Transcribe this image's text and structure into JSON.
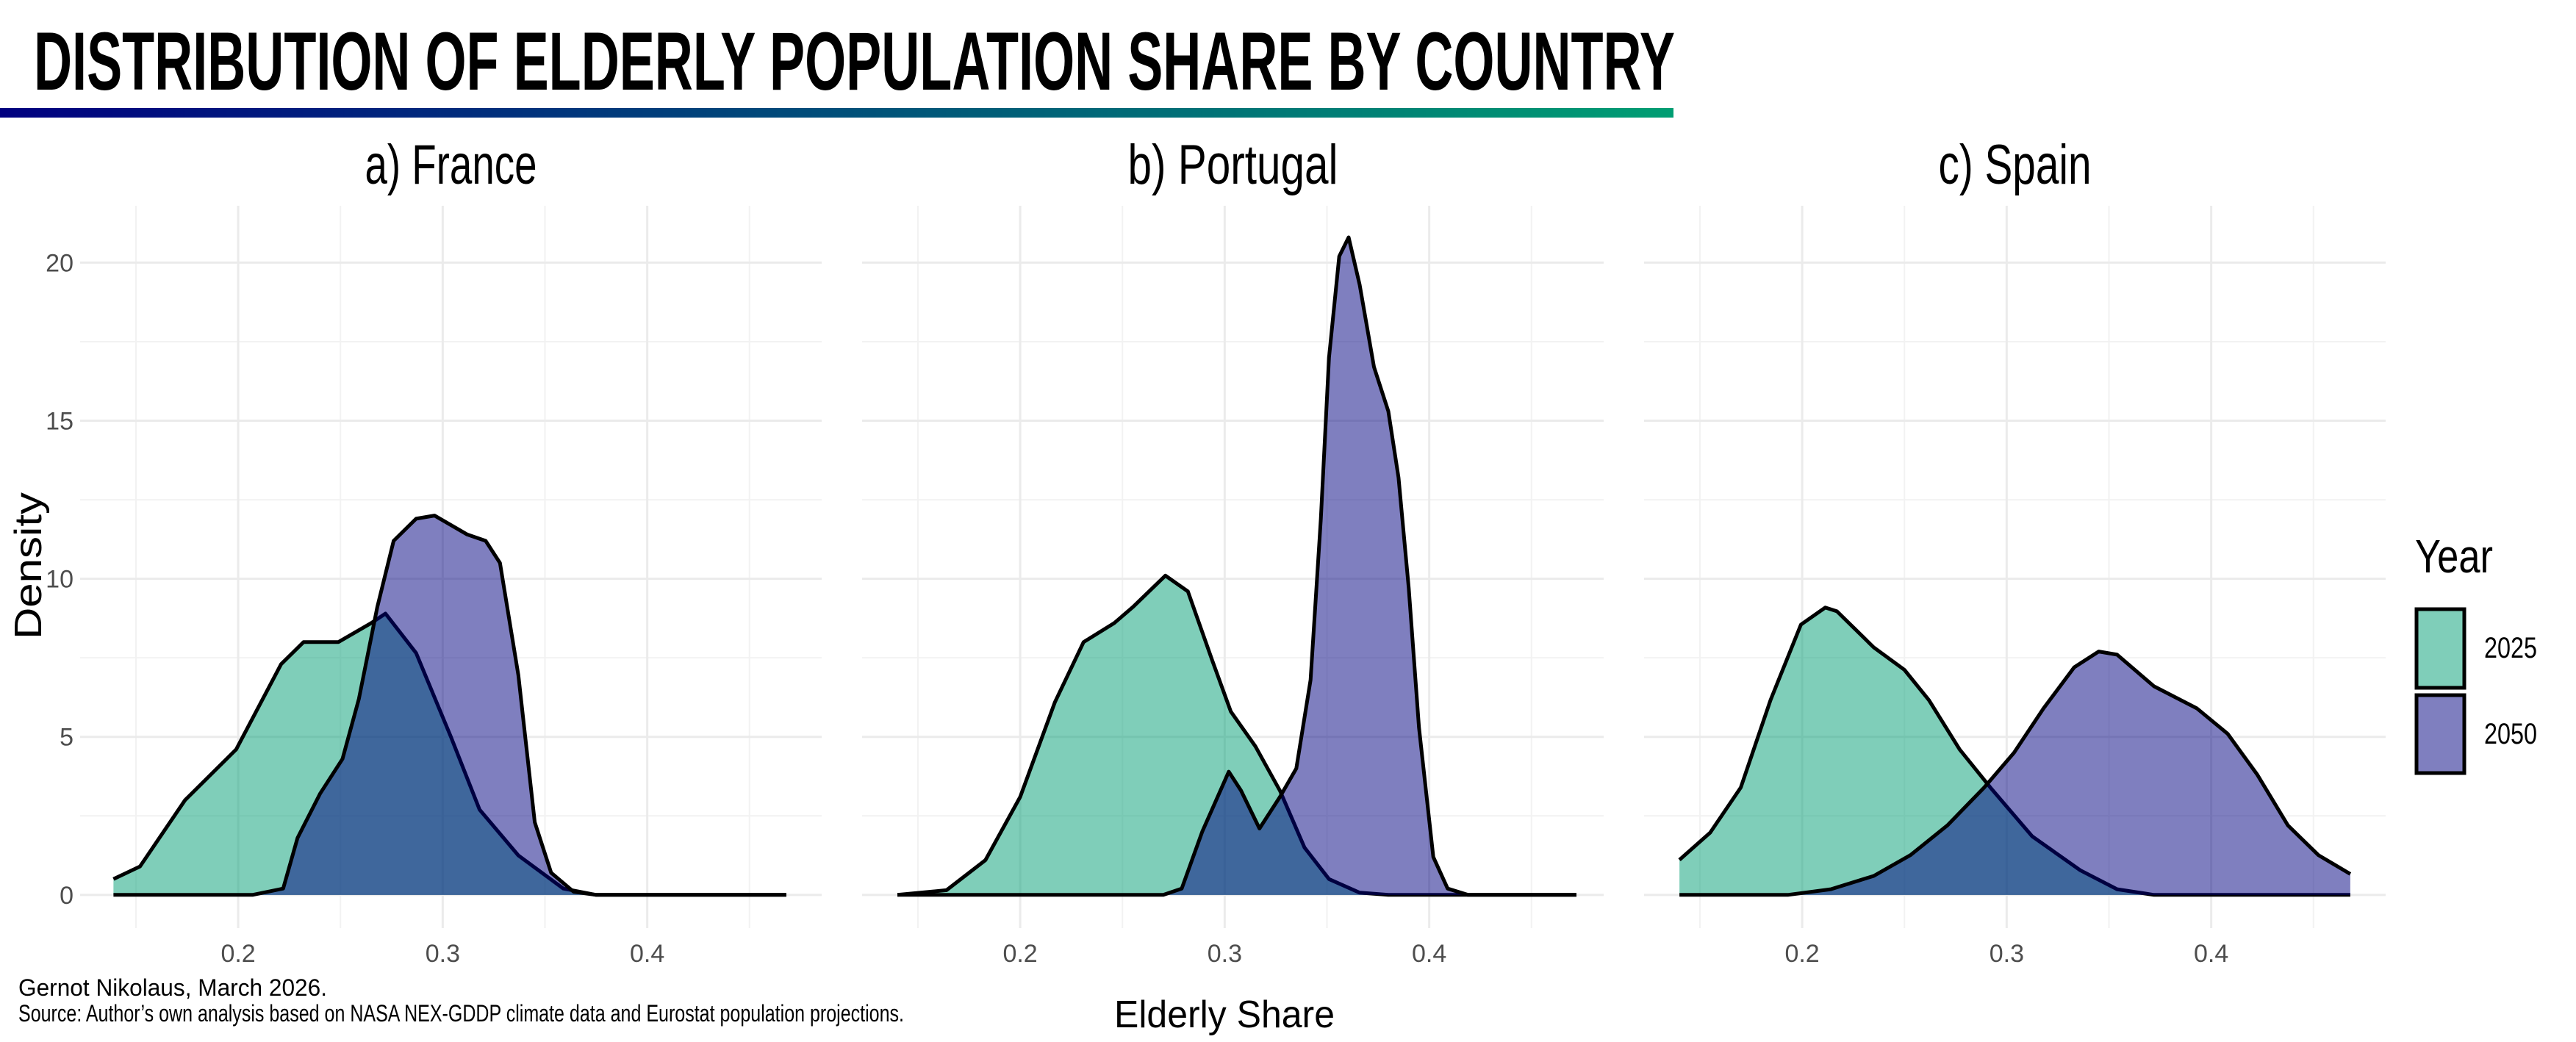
{
  "title": "DISTRIBUTION OF ELDERLY POPULATION SHARE BY COUNTRY",
  "caption_line1": "Gernot Nikolaus, March 2026.",
  "caption_line2": "Source: Author’s own analysis based on NASA NEX-GDDP climate data and Eurostat population projections.",
  "colors": {
    "title_bar_start": "#000080",
    "title_bar_end": "#009E73",
    "2025": "#009E73",
    "2050": "#000080",
    "fill_opacity": 0.5
  },
  "chart_data": {
    "type": "area",
    "subtype": "density",
    "xlabel": "Elderly Share",
    "ylabel": "Density",
    "xlim": [
      0.1227,
      0.4853
    ],
    "ylim": [
      -1.05,
      21.8
    ],
    "x_ticks": [
      "0.2",
      "0.3",
      "0.4"
    ],
    "x_tick_values": [
      0.2,
      0.3,
      0.4
    ],
    "y_ticks": [
      "0",
      "5",
      "10",
      "15",
      "20"
    ],
    "y_tick_values": [
      0,
      5,
      10,
      15,
      20
    ],
    "grid": true,
    "legend": {
      "title": "Year",
      "position": "right",
      "entries": [
        "2025",
        "2050"
      ]
    },
    "panels": [
      {
        "title": "a) France",
        "series": [
          {
            "name": "2025",
            "points": [
              [
                0.139,
                0.5
              ],
              [
                0.152,
                0.9
              ],
              [
                0.174,
                3.0
              ],
              [
                0.199,
                4.6
              ],
              [
                0.221,
                7.3
              ],
              [
                0.232,
                8.0
              ],
              [
                0.249,
                8.0
              ],
              [
                0.265,
                8.6
              ],
              [
                0.272,
                8.9
              ],
              [
                0.287,
                7.65
              ],
              [
                0.304,
                5.0
              ],
              [
                0.318,
                2.7
              ],
              [
                0.337,
                1.25
              ],
              [
                0.359,
                0.2
              ],
              [
                0.375,
                0
              ],
              [
                0.468,
                0
              ]
            ]
          },
          {
            "name": "2050",
            "points": [
              [
                0.139,
                0
              ],
              [
                0.207,
                0
              ],
              [
                0.222,
                0.2
              ],
              [
                0.229,
                1.8
              ],
              [
                0.24,
                3.2
              ],
              [
                0.251,
                4.3
              ],
              [
                0.259,
                6.2
              ],
              [
                0.268,
                9.1
              ],
              [
                0.276,
                11.2
              ],
              [
                0.287,
                11.9
              ],
              [
                0.296,
                12.0
              ],
              [
                0.312,
                11.4
              ],
              [
                0.321,
                11.2
              ],
              [
                0.328,
                10.5
              ],
              [
                0.337,
                6.95
              ],
              [
                0.345,
                2.3
              ],
              [
                0.353,
                0.7
              ],
              [
                0.364,
                0.1
              ],
              [
                0.375,
                0
              ],
              [
                0.468,
                0
              ]
            ]
          }
        ]
      },
      {
        "title": "b) Portugal",
        "series": [
          {
            "name": "2025",
            "points": [
              [
                0.14,
                0
              ],
              [
                0.164,
                0.15
              ],
              [
                0.183,
                1.1
              ],
              [
                0.2,
                3.1
              ],
              [
                0.217,
                6.1
              ],
              [
                0.231,
                8.0
              ],
              [
                0.246,
                8.6
              ],
              [
                0.255,
                9.1
              ],
              [
                0.271,
                10.1
              ],
              [
                0.282,
                9.6
              ],
              [
                0.294,
                7.4
              ],
              [
                0.303,
                5.8
              ],
              [
                0.315,
                4.7
              ],
              [
                0.327,
                3.3
              ],
              [
                0.339,
                1.5
              ],
              [
                0.351,
                0.5
              ],
              [
                0.366,
                0.07
              ],
              [
                0.38,
                0
              ],
              [
                0.472,
                0
              ]
            ]
          },
          {
            "name": "2050",
            "points": [
              [
                0.14,
                0
              ],
              [
                0.27,
                0
              ],
              [
                0.279,
                0.2
              ],
              [
                0.289,
                2.0
              ],
              [
                0.302,
                3.9
              ],
              [
                0.308,
                3.3
              ],
              [
                0.317,
                2.1
              ],
              [
                0.327,
                3.1
              ],
              [
                0.335,
                4.0
              ],
              [
                0.342,
                6.8
              ],
              [
                0.347,
                11.9
              ],
              [
                0.351,
                17.0
              ],
              [
                0.356,
                20.2
              ],
              [
                0.3606,
                20.8
              ],
              [
                0.366,
                19.3
              ],
              [
                0.373,
                16.7
              ],
              [
                0.38,
                15.3
              ],
              [
                0.385,
                13.2
              ],
              [
                0.39,
                9.7
              ],
              [
                0.395,
                5.3
              ],
              [
                0.402,
                1.2
              ],
              [
                0.409,
                0.2
              ],
              [
                0.419,
                0
              ],
              [
                0.472,
                0
              ]
            ]
          }
        ]
      },
      {
        "title": "c) Spain",
        "series": [
          {
            "name": "2025",
            "points": [
              [
                0.14,
                1.11
              ],
              [
                0.155,
                1.97
              ],
              [
                0.17,
                3.4
              ],
              [
                0.1845,
                6.16
              ],
              [
                0.1994,
                8.55
              ],
              [
                0.2113,
                9.09
              ],
              [
                0.217,
                8.97
              ],
              [
                0.235,
                7.83
              ],
              [
                0.25,
                7.12
              ],
              [
                0.262,
                6.16
              ],
              [
                0.277,
                4.6
              ],
              [
                0.292,
                3.4
              ],
              [
                0.3125,
                1.85
              ],
              [
                0.336,
                0.78
              ],
              [
                0.354,
                0.18
              ],
              [
                0.372,
                0
              ],
              [
                0.468,
                0
              ]
            ]
          },
          {
            "name": "2050",
            "points": [
              [
                0.14,
                0
              ],
              [
                0.193,
                0
              ],
              [
                0.214,
                0.18
              ],
              [
                0.235,
                0.6
              ],
              [
                0.253,
                1.26
              ],
              [
                0.271,
                2.2
              ],
              [
                0.289,
                3.4
              ],
              [
                0.3036,
                4.5
              ],
              [
                0.318,
                5.9
              ],
              [
                0.333,
                7.2
              ],
              [
                0.345,
                7.7
              ],
              [
                0.354,
                7.6
              ],
              [
                0.372,
                6.6
              ],
              [
                0.393,
                5.9
              ],
              [
                0.408,
                5.1
              ],
              [
                0.4226,
                3.8
              ],
              [
                0.4375,
                2.2
              ],
              [
                0.4524,
                1.26
              ],
              [
                0.468,
                0.66
              ]
            ]
          }
        ]
      }
    ]
  }
}
